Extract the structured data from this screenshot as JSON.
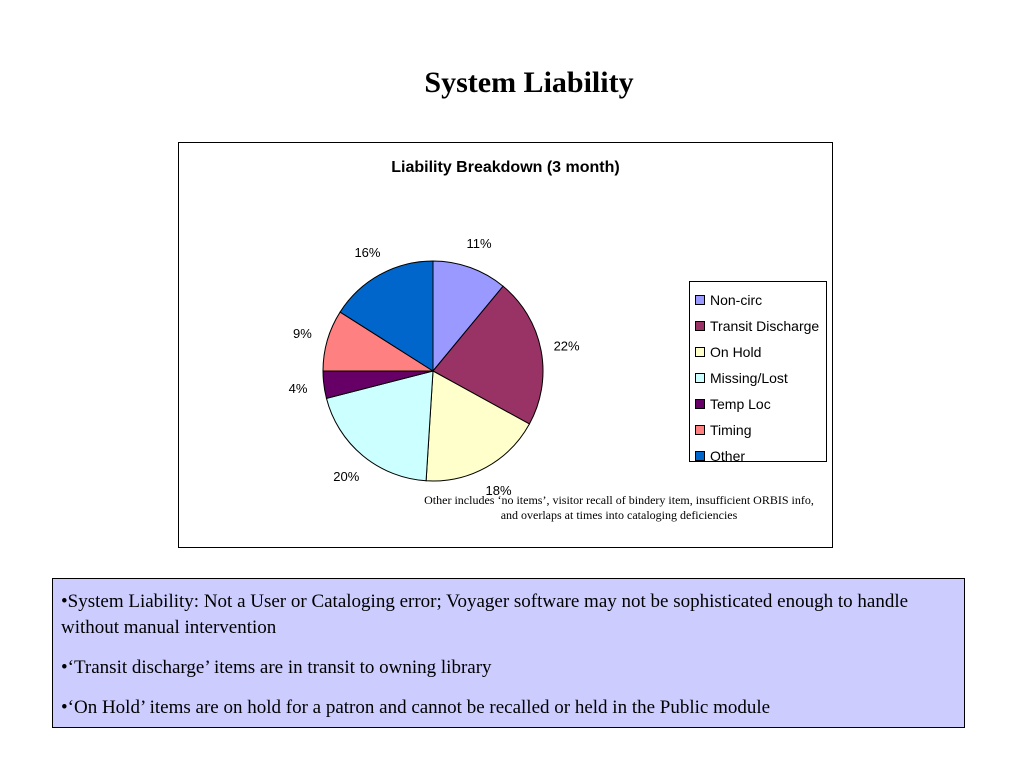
{
  "slide": {
    "title": "System Liability"
  },
  "chart_data": {
    "type": "pie",
    "title": "Liability Breakdown (3 month)",
    "labels": [
      "Non-circ",
      "Transit Discharge",
      "On Hold",
      "Missing/Lost",
      "Temp Loc",
      "Timing",
      "Other"
    ],
    "values": [
      11,
      22,
      18,
      20,
      4,
      9,
      16
    ],
    "data_labels": [
      "11%",
      "22%",
      "18%",
      "20%",
      "4%",
      "9%",
      "16%"
    ],
    "colors": [
      "#9999ff",
      "#993366",
      "#ffffcc",
      "#ccffff",
      "#660066",
      "#ff8080",
      "#0066cc"
    ],
    "legend_placement": "right",
    "note": "Other includes ‘no items’, visitor recall of bindery item, insufficient ORBIS info, and overlaps at times into cataloging deficiencies"
  },
  "notes": [
    "•System Liability: Not a User or Cataloging error; Voyager software may not be sophisticated enough to handle without manual intervention",
    "•‘Transit discharge’ items are in transit to owning library",
    "•‘On Hold’ items are on hold for a patron and cannot be recalled or held in the Public module"
  ]
}
